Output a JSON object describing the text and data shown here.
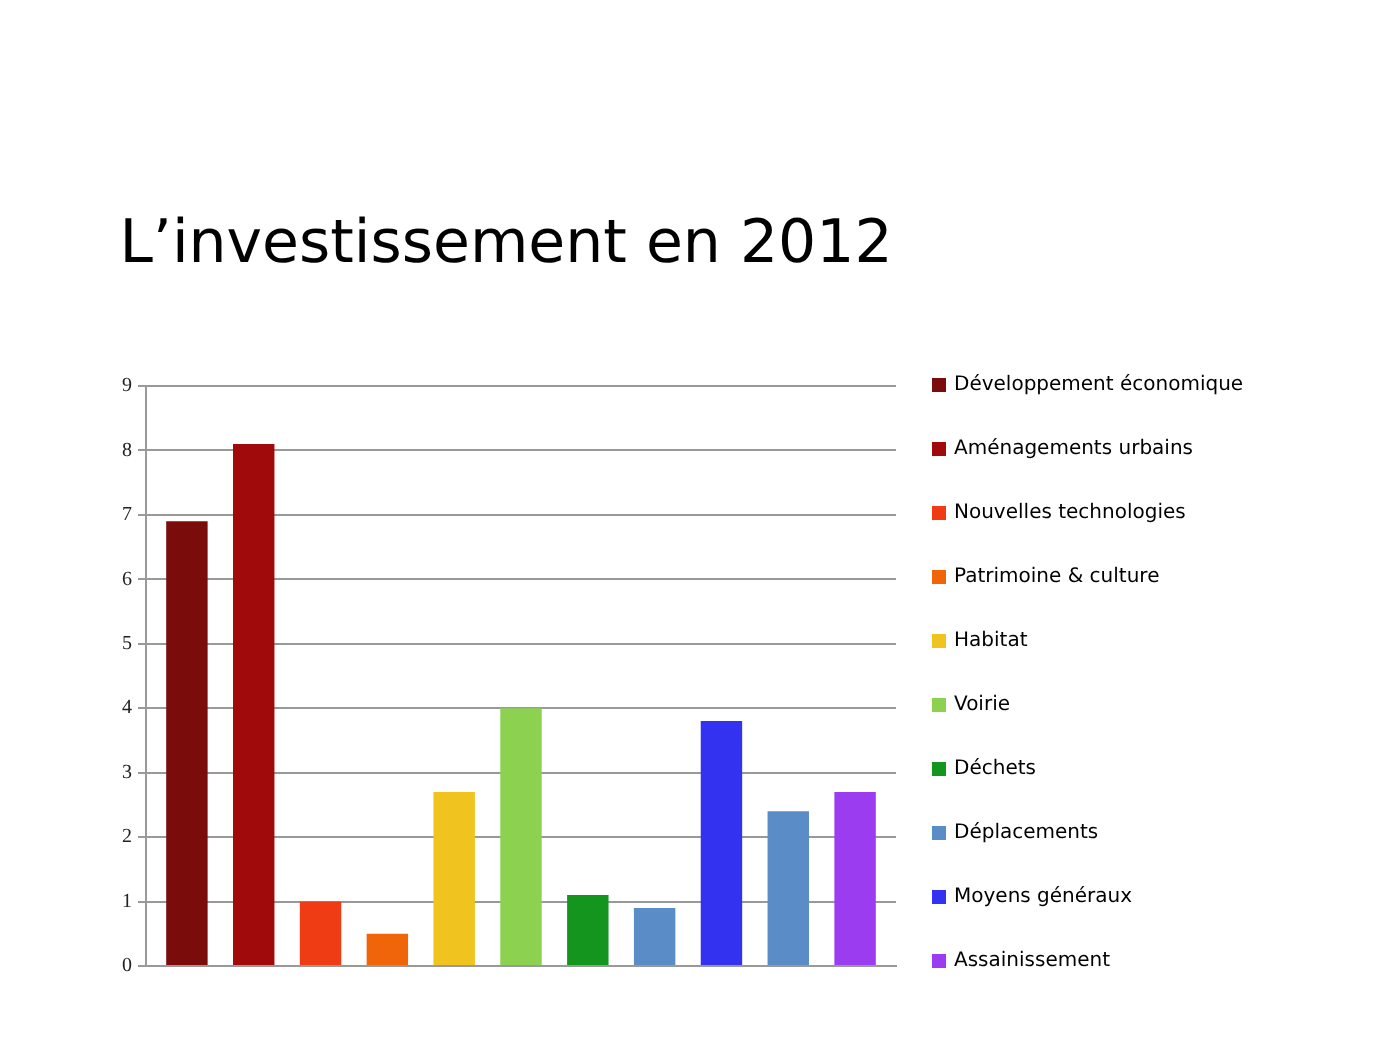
{
  "chart_data": {
    "type": "bar",
    "title": "L’investissement en 2012",
    "categories": [
      null
    ],
    "series": [
      {
        "name": "Développement économique",
        "color": "#7a0c0c",
        "values": [
          6.9
        ]
      },
      {
        "name": "Aménagements urbains",
        "color": "#a00a0a",
        "values": [
          8.1
        ]
      },
      {
        "name": "Nouvelles technologies",
        "color": "#f03c14",
        "values": [
          1.0
        ]
      },
      {
        "name": "Patrimoine & culture",
        "color": "#f0640a",
        "values": [
          0.5
        ]
      },
      {
        "name": "Habitat",
        "color": "#f0c31e",
        "values": [
          2.7
        ]
      },
      {
        "name": "Voirie",
        "color": "#8cd250",
        "values": [
          4.0
        ]
      },
      {
        "name": "Déchets",
        "color": "#14961e",
        "values": [
          1.1
        ]
      },
      {
        "name": "Déplacements",
        "color": "#5a8cc8",
        "values": [
          0.9
        ]
      },
      {
        "name": "Moyens généraux",
        "color": "#3232f0",
        "values": [
          3.8
        ]
      },
      {
        "color": "#5a8cc8",
        "values": [
          2.4
        ]
      },
      {
        "name": "Assainissement",
        "color": "#9b3cf0",
        "values": [
          2.7
        ]
      }
    ],
    "ylim": [
      0,
      9
    ],
    "yticks": [
      0,
      1,
      2,
      3,
      4,
      5,
      6,
      7,
      8,
      9
    ],
    "grid": "y",
    "legend": "right",
    "tick_labels": "y"
  }
}
